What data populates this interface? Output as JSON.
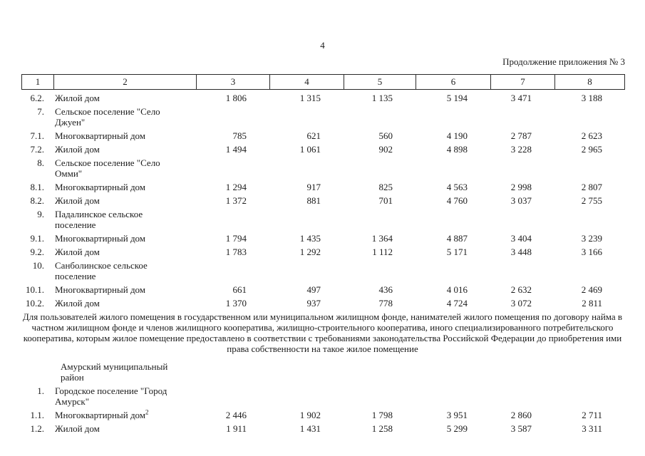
{
  "page": {
    "number": "4",
    "continuation": "Продолжение приложения № 3"
  },
  "table1": {
    "headers": [
      "1",
      "2",
      "3",
      "4",
      "5",
      "6",
      "7",
      "8"
    ],
    "rows": [
      {
        "num": "6.2.",
        "name": "Жилой дом",
        "values": [
          "1 806",
          "1 315",
          "1 135",
          "5 194",
          "3 471",
          "3 188"
        ]
      },
      {
        "num": "7.",
        "name": "Сельское поселение \"Село Джуен\"",
        "values": [
          "",
          "",
          "",
          "",
          "",
          ""
        ]
      },
      {
        "num": "7.1.",
        "name": "Многоквартирный дом",
        "values": [
          "785",
          "621",
          "560",
          "4 190",
          "2 787",
          "2 623"
        ]
      },
      {
        "num": "7.2.",
        "name": "Жилой дом",
        "values": [
          "1 494",
          "1 061",
          "902",
          "4 898",
          "3 228",
          "2 965"
        ]
      },
      {
        "num": "8.",
        "name": "Сельское поселение \"Село Омми\"",
        "values": [
          "",
          "",
          "",
          "",
          "",
          ""
        ]
      },
      {
        "num": "8.1.",
        "name": "Многоквартирный дом",
        "values": [
          "1 294",
          "917",
          "825",
          "4 563",
          "2 998",
          "2 807"
        ]
      },
      {
        "num": "8.2.",
        "name": "Жилой дом",
        "values": [
          "1 372",
          "881",
          "701",
          "4 760",
          "3 037",
          "2 755"
        ]
      },
      {
        "num": "9.",
        "name": "Падалинское сельское поселение",
        "values": [
          "",
          "",
          "",
          "",
          "",
          ""
        ]
      },
      {
        "num": "9.1.",
        "name": "Многоквартирный дом",
        "values": [
          "1 794",
          "1 435",
          "1 364",
          "4 887",
          "3 404",
          "3 239"
        ]
      },
      {
        "num": "9.2.",
        "name": "Жилой дом",
        "values": [
          "1 783",
          "1 292",
          "1 112",
          "5 171",
          "3 448",
          "3 166"
        ]
      },
      {
        "num": "10.",
        "name": "Санболинское сельское поселение",
        "values": [
          "",
          "",
          "",
          "",
          "",
          ""
        ]
      },
      {
        "num": "10.1.",
        "name": "Многоквартирный дом",
        "values": [
          "661",
          "497",
          "436",
          "4 016",
          "2 632",
          "2 469"
        ]
      },
      {
        "num": "10.2.",
        "name": "Жилой дом",
        "values": [
          "1 370",
          "937",
          "778",
          "4 724",
          "3 072",
          "2 811"
        ]
      }
    ]
  },
  "note": "Для пользователей жилого помещения в государственном или муниципальном жилищном фонде, нанимателей жилого помещения по договору найма в частном жилищном фонде и членов жилищного кооператива, жилищно-строительного кооператива, иного специализированного потребительского кооператива, которым жилое помещение предоставлено в соответствии с требованиями законодательства Российской Федерации до приобретения ими права собственности на такое жилое помещение",
  "table2": {
    "region": "Амурский муниципальный район",
    "rows": [
      {
        "num": "1.",
        "name": "Городское поселение \"Город Амурск\"",
        "sup": "",
        "values": [
          "",
          "",
          "",
          "",
          "",
          ""
        ]
      },
      {
        "num": "1.1.",
        "name": "Многоквартирный дом",
        "sup": "2",
        "values": [
          "2 446",
          "1 902",
          "1 798",
          "3 951",
          "2 860",
          "2 711"
        ]
      },
      {
        "num": "1.2.",
        "name": "Жилой дом",
        "sup": "",
        "values": [
          "1 911",
          "1 431",
          "1 258",
          "5 299",
          "3 587",
          "3 311"
        ]
      }
    ]
  }
}
